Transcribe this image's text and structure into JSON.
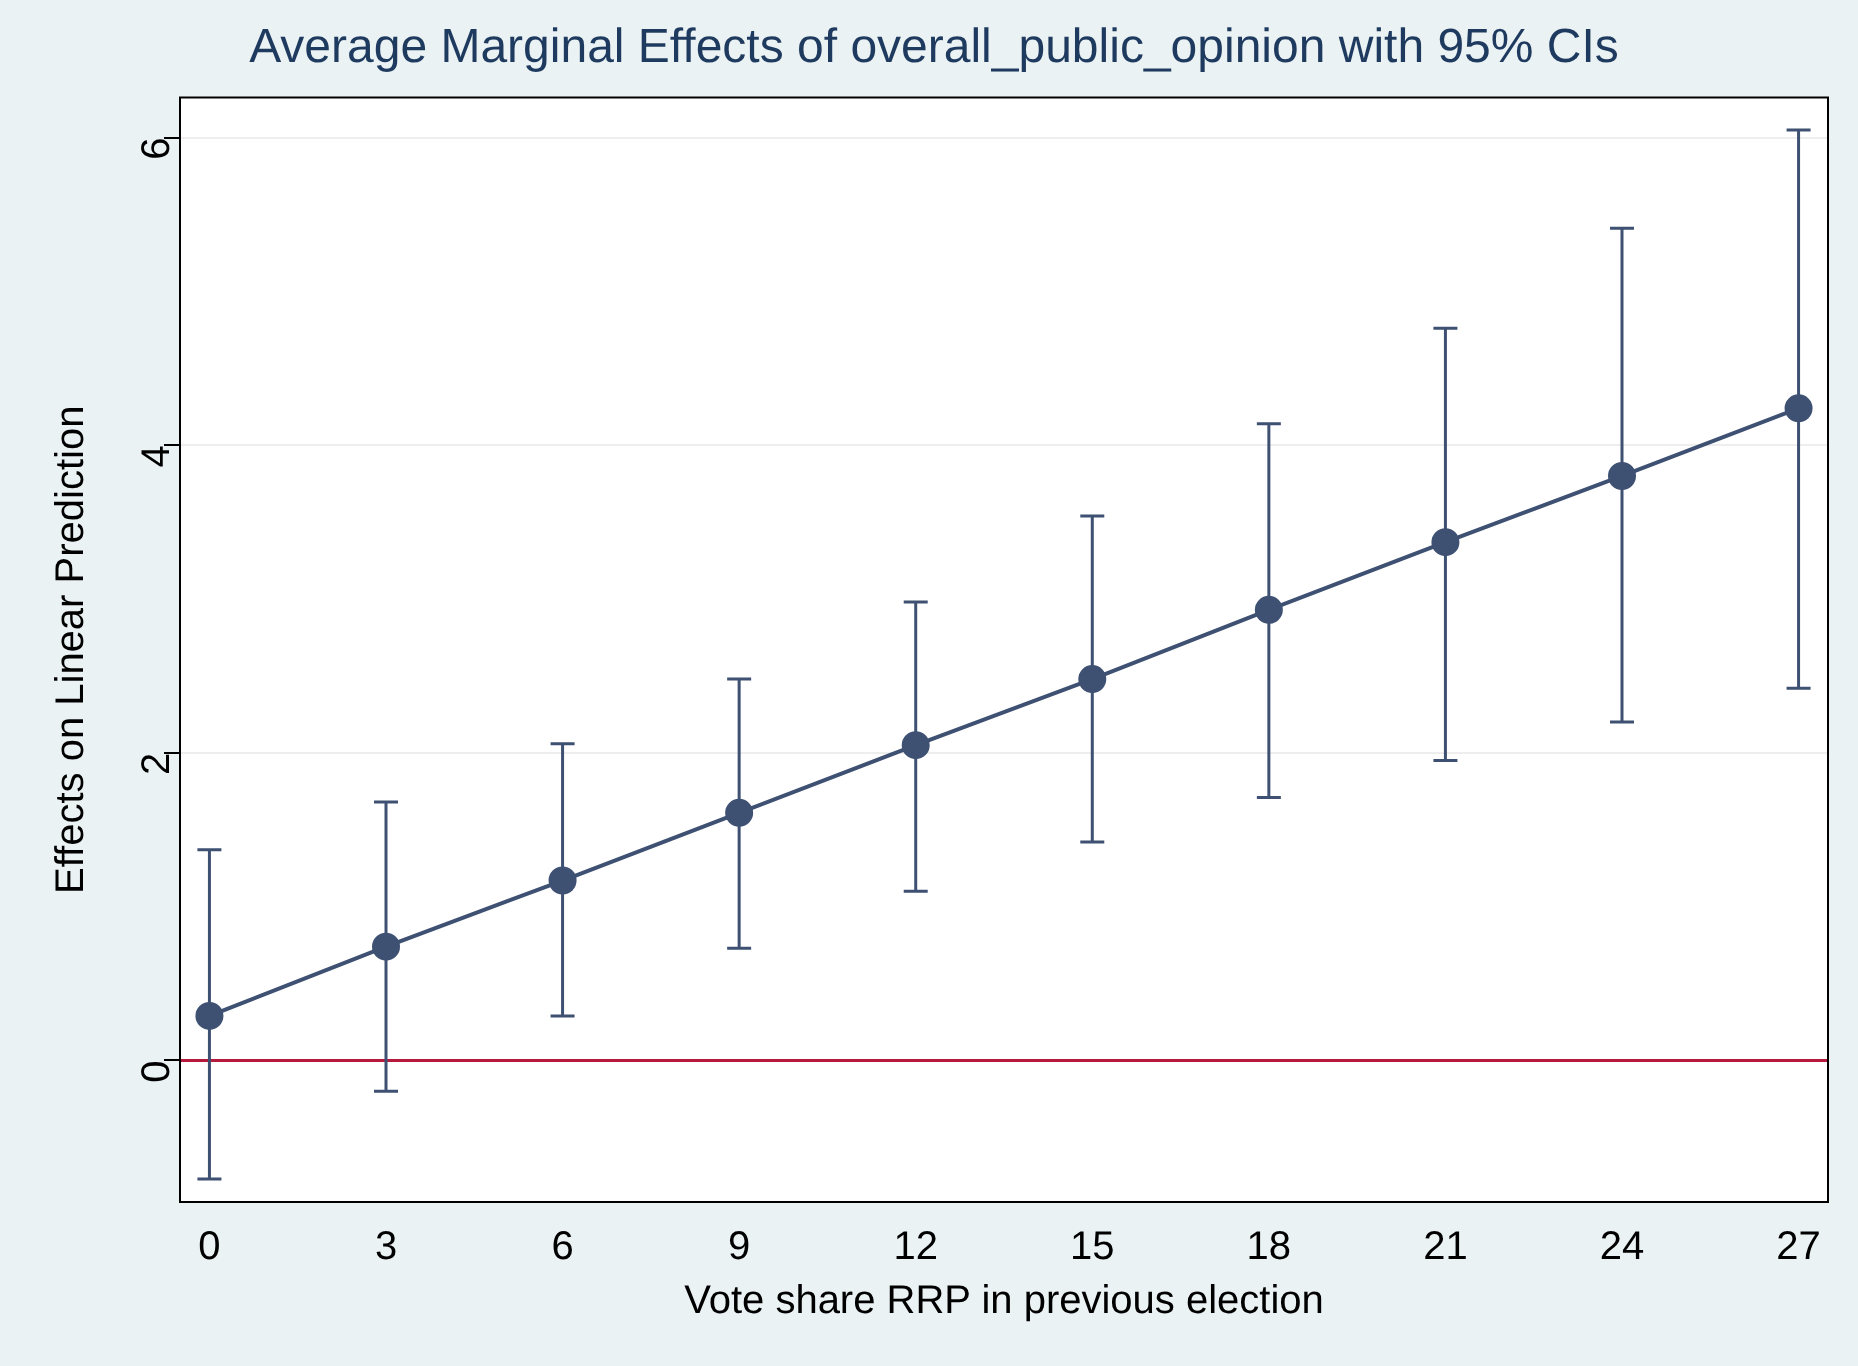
{
  "chart_data": {
    "type": "line",
    "title": "Average Marginal Effects of overall_public_opinion with 95% CIs",
    "xlabel": "Vote share RRP in previous election",
    "ylabel": "Effects on Linear Prediction",
    "x": [
      0,
      3,
      6,
      9,
      12,
      15,
      18,
      21,
      24,
      27
    ],
    "series": [
      {
        "color": "#3e5173",
        "values": [
          0.29,
          0.74,
          1.17,
          1.61,
          2.05,
          2.48,
          2.93,
          3.37,
          3.8,
          4.24
        ],
        "errors": [
          [
            -0.77,
            1.37
          ],
          [
            -0.2,
            1.68
          ],
          [
            0.29,
            2.06
          ],
          [
            0.73,
            2.48
          ],
          [
            1.1,
            2.98
          ],
          [
            1.42,
            3.54
          ],
          [
            1.71,
            4.14
          ],
          [
            1.95,
            4.76
          ],
          [
            2.2,
            5.41
          ],
          [
            2.42,
            6.05
          ]
        ]
      }
    ],
    "xlim": [
      -0.5,
      27.5
    ],
    "xticks": [
      0,
      3,
      6,
      9,
      12,
      15,
      18,
      21,
      24,
      27
    ],
    "ylim": [
      -0.92,
      6.26
    ],
    "yticks": [
      0,
      2,
      4,
      6
    ],
    "ref_lines": [
      {
        "axis": "y",
        "value": 0,
        "color": "#b5193b"
      }
    ],
    "grid": "y",
    "marker": "circle",
    "line_style": "solid",
    "legend": false
  }
}
